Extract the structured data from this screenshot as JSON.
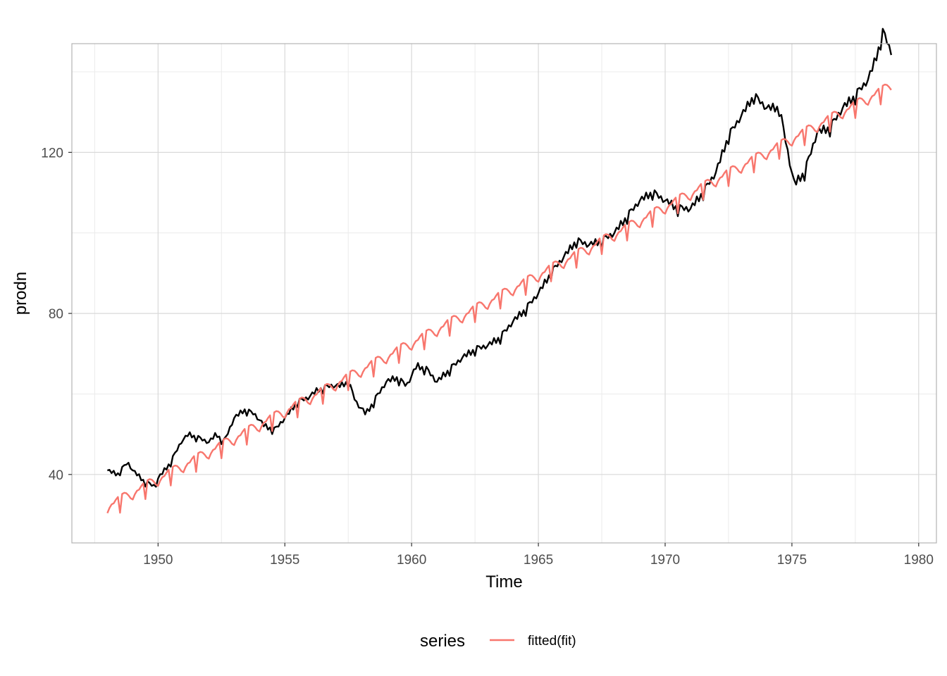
{
  "chart_data": {
    "type": "line",
    "xlabel": "Time",
    "ylabel": "prodn",
    "xlim": [
      1946.6,
      1980.7
    ],
    "ylim": [
      23,
      147
    ],
    "x_major_ticks": [
      1950,
      1955,
      1960,
      1965,
      1970,
      1975,
      1980
    ],
    "x_tick_labels": [
      "1950",
      "1955",
      "1960",
      "1965",
      "1970",
      "1975",
      "1980"
    ],
    "x_minor_ticks": [
      1947.5,
      1952.5,
      1957.5,
      1962.5,
      1967.5,
      1972.5,
      1977.5
    ],
    "y_major_ticks": [
      40,
      80,
      120
    ],
    "y_tick_labels": [
      "40",
      "80",
      "120"
    ],
    "y_minor_ticks": [
      60,
      100,
      140
    ],
    "grid": true,
    "legend": {
      "position": "bottom",
      "title": "series",
      "entries": [
        "fitted(fit)"
      ]
    },
    "series": [
      {
        "name": "prodn",
        "color": "#000000",
        "start": 1948.0,
        "frequency": 12,
        "anchors": [
          [
            1948.0,
            41
          ],
          [
            1948.4,
            40
          ],
          [
            1948.8,
            43
          ],
          [
            1949.0,
            41
          ],
          [
            1949.5,
            38
          ],
          [
            1949.9,
            37
          ],
          [
            1950.0,
            39
          ],
          [
            1950.5,
            43
          ],
          [
            1950.9,
            48
          ],
          [
            1951.2,
            50
          ],
          [
            1951.6,
            49
          ],
          [
            1952.0,
            48
          ],
          [
            1952.3,
            50
          ],
          [
            1952.6,
            48
          ],
          [
            1953.0,
            54
          ],
          [
            1953.4,
            56
          ],
          [
            1953.8,
            55
          ],
          [
            1954.2,
            52
          ],
          [
            1954.6,
            51
          ],
          [
            1955.0,
            54
          ],
          [
            1955.5,
            58
          ],
          [
            1955.9,
            59
          ],
          [
            1956.3,
            61
          ],
          [
            1956.8,
            62
          ],
          [
            1957.2,
            62
          ],
          [
            1957.5,
            63
          ],
          [
            1957.8,
            58
          ],
          [
            1958.2,
            55
          ],
          [
            1958.6,
            59
          ],
          [
            1959.0,
            63
          ],
          [
            1959.4,
            64
          ],
          [
            1959.8,
            62
          ],
          [
            1960.2,
            67
          ],
          [
            1960.6,
            66
          ],
          [
            1961.0,
            63
          ],
          [
            1961.5,
            66
          ],
          [
            1962.0,
            69
          ],
          [
            1962.5,
            71
          ],
          [
            1963.0,
            72
          ],
          [
            1963.5,
            74
          ],
          [
            1964.0,
            78
          ],
          [
            1964.5,
            81
          ],
          [
            1965.0,
            85
          ],
          [
            1965.5,
            90
          ],
          [
            1966.0,
            94
          ],
          [
            1966.5,
            98
          ],
          [
            1967.0,
            97
          ],
          [
            1967.5,
            98
          ],
          [
            1968.0,
            100
          ],
          [
            1968.5,
            104
          ],
          [
            1969.0,
            108
          ],
          [
            1969.5,
            110
          ],
          [
            1970.0,
            108
          ],
          [
            1970.5,
            106
          ],
          [
            1971.0,
            106
          ],
          [
            1971.5,
            110
          ],
          [
            1972.0,
            115
          ],
          [
            1972.5,
            124
          ],
          [
            1973.0,
            129
          ],
          [
            1973.5,
            134
          ],
          [
            1974.0,
            131
          ],
          [
            1974.5,
            131
          ],
          [
            1974.9,
            118
          ],
          [
            1975.1,
            112
          ],
          [
            1975.5,
            115
          ],
          [
            1976.0,
            125
          ],
          [
            1976.5,
            126
          ],
          [
            1977.0,
            131
          ],
          [
            1977.5,
            134
          ],
          [
            1978.0,
            138
          ],
          [
            1978.3,
            143
          ],
          [
            1978.6,
            150
          ],
          [
            1978.9,
            145
          ]
        ]
      },
      {
        "name": "fitted(fit)",
        "color": "#F8766D",
        "start": 1948.0,
        "frequency": 12,
        "trend_start": 32.0,
        "trend_slope_per_year": 3.38,
        "seasonal": [
          -1.6,
          -0.6,
          0.0,
          0.0,
          0.6,
          1.0,
          -3.2,
          1.2,
          1.2,
          0.8,
          0.0,
          -1.0
        ]
      }
    ]
  }
}
